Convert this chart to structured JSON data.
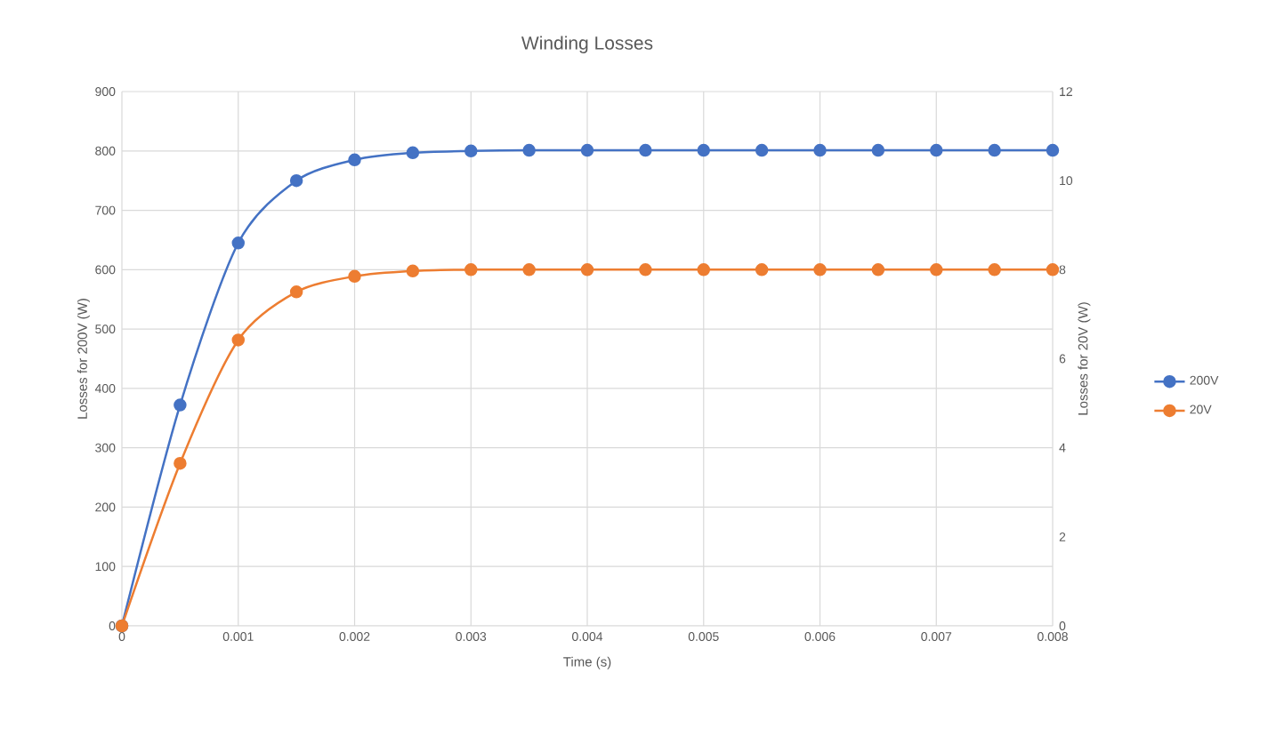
{
  "chart_data": {
    "type": "line",
    "title": "Winding Losses",
    "xlabel": "Time (s)",
    "ylabel": "Losses for 200V (W)",
    "y2label": "Losses for 20V (W)",
    "x": [
      0,
      0.0005,
      0.001,
      0.0015,
      0.002,
      0.0025,
      0.003,
      0.0035,
      0.004,
      0.0045,
      0.005,
      0.0055,
      0.006,
      0.0065,
      0.007,
      0.0075,
      0.008
    ],
    "series": [
      {
        "name": "200V",
        "color": "#4472c4",
        "values": [
          0,
          372,
          645,
          750,
          785,
          797,
          800,
          801,
          801,
          801,
          801,
          801,
          801,
          801,
          801,
          801,
          801
        ]
      },
      {
        "name": "20V",
        "color": "#ed7d31",
        "axis": "y2",
        "values": [
          0,
          3.65,
          6.42,
          7.5,
          7.85,
          7.97,
          8.0,
          8.0,
          8.0,
          8.0,
          8.0,
          8.0,
          8.0,
          8.0,
          8.0,
          8.0,
          8.0
        ]
      }
    ],
    "xlim": [
      0,
      0.008
    ],
    "xticks": [
      0,
      0.001,
      0.002,
      0.003,
      0.004,
      0.005,
      0.006,
      0.007,
      0.008
    ],
    "ylim": [
      0,
      900
    ],
    "yticks": [
      0,
      100,
      200,
      300,
      400,
      500,
      600,
      700,
      800,
      900
    ],
    "y2lim": [
      0,
      12
    ],
    "y2ticks": [
      0,
      2,
      4,
      6,
      8,
      10,
      12
    ],
    "grid": true,
    "legend": "right",
    "marker": "circle",
    "line_style": "solid"
  }
}
